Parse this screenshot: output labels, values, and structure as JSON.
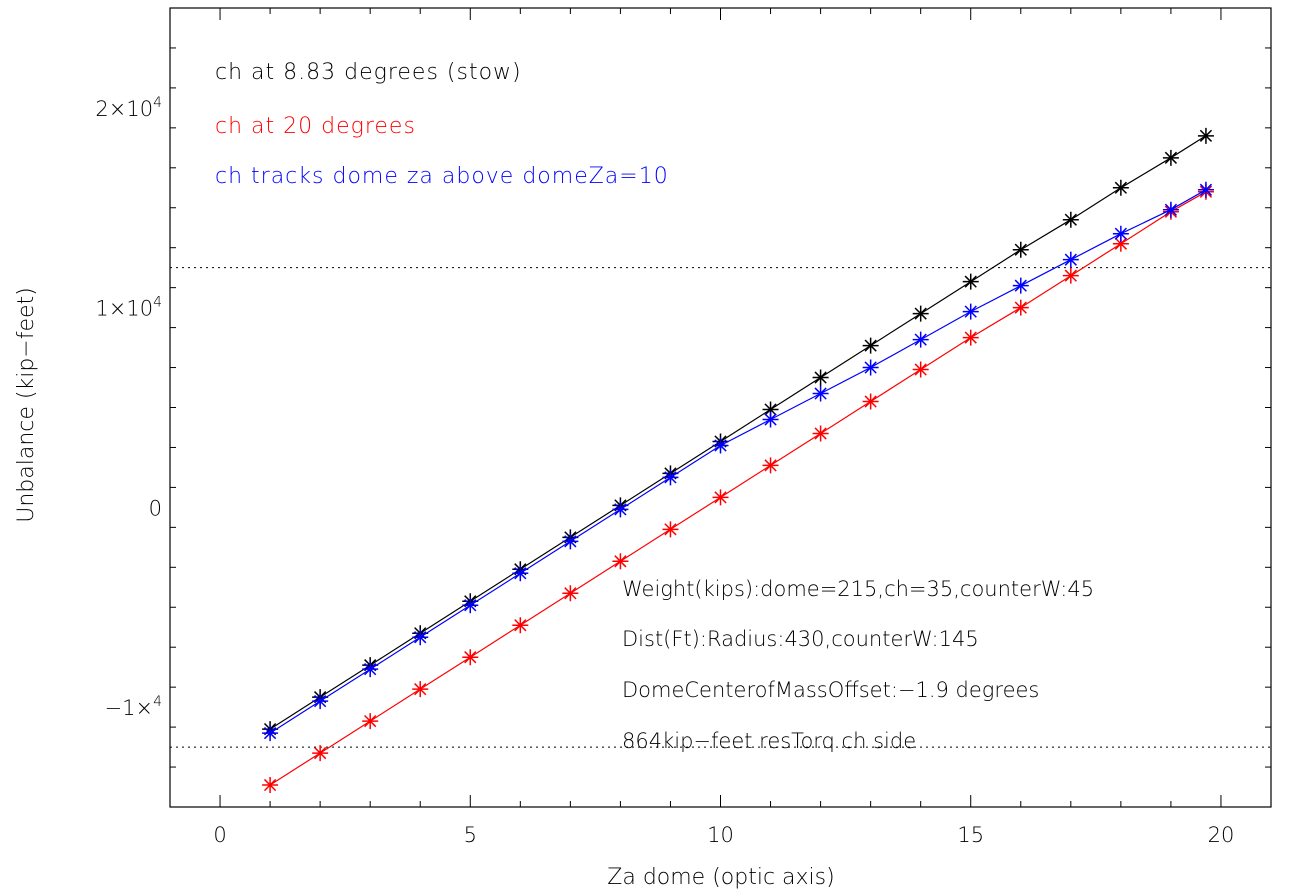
{
  "chart_data": {
    "type": "line",
    "title": "",
    "xlabel": "Za dome (optic axis)",
    "ylabel": "Unbalance (kip−feet)",
    "xlim": [
      -1,
      21
    ],
    "ylim": [
      -15000,
      25000
    ],
    "x_ticks": [
      {
        "value": 0,
        "label": "0"
      },
      {
        "value": 5,
        "label": "5"
      },
      {
        "value": 10,
        "label": "10"
      },
      {
        "value": 15,
        "label": "15"
      },
      {
        "value": 20,
        "label": "20"
      }
    ],
    "y_ticks": [
      {
        "value": -10000,
        "label": "−1×",
        "exp": "4"
      },
      {
        "value": 0,
        "label": "0",
        "exp": ""
      },
      {
        "value": 10000,
        "label": "1×10",
        "exp": "4"
      },
      {
        "value": 20000,
        "label": "2×10",
        "exp": "4"
      }
    ],
    "x_minor_step": 1,
    "y_minor_step": 2000,
    "grid": false,
    "legend_position": "top-left",
    "reference_lines": [
      12000,
      -12000
    ],
    "x": [
      1,
      2,
      3,
      4,
      5,
      6,
      7,
      8,
      9,
      10,
      11,
      12,
      13,
      14,
      15,
      16,
      17,
      18,
      19,
      19.7
    ],
    "series": [
      {
        "name": "ch at 8.83 degrees (stow)",
        "color": "#000000",
        "values": [
          -11100,
          -9500,
          -7900,
          -6300,
          -4700,
          -3100,
          -1500,
          100,
          1700,
          3300,
          4900,
          6500,
          8100,
          9700,
          11300,
          12900,
          14400,
          16000,
          17500,
          18600
        ]
      },
      {
        "name": "ch at 20 degrees",
        "color": "#ff0000",
        "values": [
          -13900,
          -12300,
          -10700,
          -9100,
          -7500,
          -5900,
          -4300,
          -2700,
          -1100,
          500,
          2100,
          3700,
          5300,
          6900,
          8500,
          10000,
          11600,
          13200,
          14800,
          15800
        ]
      },
      {
        "name": "ch tracks dome za above domeZa=10",
        "color": "#0000ff",
        "values": [
          -11300,
          -9700,
          -8100,
          -6500,
          -4900,
          -3300,
          -1700,
          -100,
          1500,
          3100,
          4400,
          5700,
          7000,
          8400,
          9800,
          11100,
          12400,
          13700,
          14900,
          15900
        ]
      }
    ],
    "annotations": [
      "Weight(kips):dome=215,ch=35,counterW:45",
      "Dist(Ft):Radius:430,counterW:145",
      "DomeCenterofMassOffset:−1.9 degrees",
      "864kip−feet resTorq ch side"
    ]
  }
}
